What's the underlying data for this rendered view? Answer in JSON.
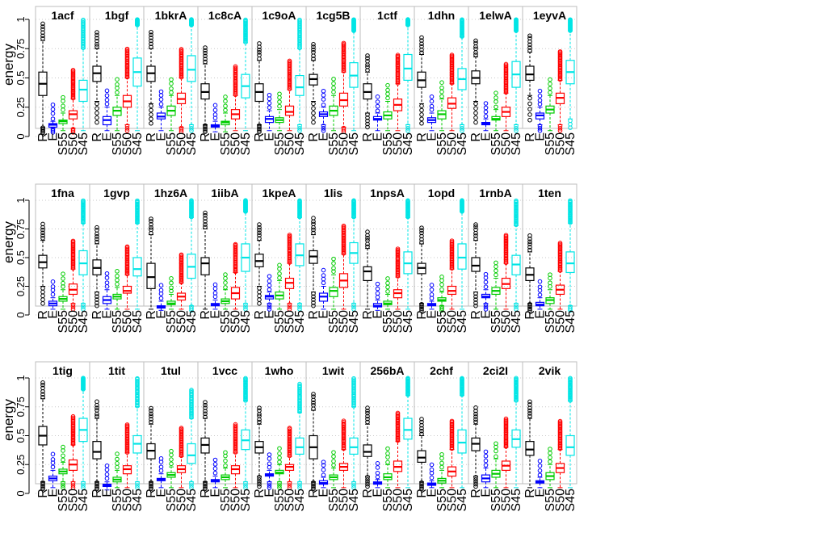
{
  "chart_data": {
    "type": "boxplot",
    "ylabel": "energy",
    "ylim": [
      0,
      1
    ],
    "yticks": [
      0,
      0.25,
      0.5,
      0.75,
      1
    ],
    "ytick_labels": [
      "0",
      "0.25",
      "0.5",
      "0.75",
      "1"
    ],
    "grid": "dotted horizontal",
    "series": [
      {
        "name": "R",
        "color": "#000000"
      },
      {
        "name": "E",
        "color": "#0000ff"
      },
      {
        "name": "S55",
        "color": "#00cc00"
      },
      {
        "name": "S50",
        "color": "#ff0000"
      },
      {
        "name": "S45",
        "color": "#00e5e5"
      }
    ],
    "panels": [
      {
        "title": "1acf",
        "boxes": [
          [
            0.08,
            0.35,
            0.45,
            0.55,
            0.82
          ],
          [
            0.07,
            0.08,
            0.1,
            0.11,
            0.13
          ],
          [
            0.05,
            0.11,
            0.13,
            0.14,
            0.2
          ],
          [
            0.07,
            0.15,
            0.19,
            0.22,
            0.32
          ],
          [
            0.05,
            0.3,
            0.4,
            0.48,
            0.75
          ]
        ]
      },
      {
        "title": "1bgf",
        "boxes": [
          [
            0.3,
            0.47,
            0.54,
            0.6,
            0.75
          ],
          [
            0.05,
            0.1,
            0.14,
            0.17,
            0.25
          ],
          [
            0.05,
            0.18,
            0.22,
            0.25,
            0.35
          ],
          [
            0.1,
            0.25,
            0.3,
            0.35,
            0.5
          ],
          [
            0.05,
            0.43,
            0.55,
            0.67,
            0.95
          ]
        ]
      },
      {
        "title": "1bkrA",
        "boxes": [
          [
            0.28,
            0.47,
            0.54,
            0.6,
            0.75
          ],
          [
            0.05,
            0.15,
            0.17,
            0.2,
            0.25
          ],
          [
            0.05,
            0.18,
            0.22,
            0.26,
            0.35
          ],
          [
            0.08,
            0.28,
            0.32,
            0.37,
            0.5
          ],
          [
            0.1,
            0.47,
            0.57,
            0.69,
            0.95
          ]
        ]
      },
      {
        "title": "1c8cA",
        "boxes": [
          [
            0.1,
            0.32,
            0.38,
            0.45,
            0.62
          ],
          [
            0.04,
            0.08,
            0.09,
            0.1,
            0.13
          ],
          [
            0.04,
            0.1,
            0.12,
            0.13,
            0.2
          ],
          [
            0.05,
            0.15,
            0.19,
            0.23,
            0.35
          ],
          [
            0.05,
            0.33,
            0.43,
            0.53,
            0.8
          ]
        ]
      },
      {
        "title": "1c9oA",
        "boxes": [
          [
            0.1,
            0.3,
            0.38,
            0.45,
            0.65
          ],
          [
            0.05,
            0.12,
            0.15,
            0.17,
            0.22
          ],
          [
            0.05,
            0.12,
            0.14,
            0.16,
            0.23
          ],
          [
            0.05,
            0.18,
            0.21,
            0.26,
            0.4
          ],
          [
            0.1,
            0.35,
            0.42,
            0.52,
            0.75
          ]
        ]
      },
      {
        "title": "1cg5B",
        "boxes": [
          [
            0.3,
            0.44,
            0.49,
            0.53,
            0.65
          ],
          [
            0.1,
            0.17,
            0.19,
            0.21,
            0.25
          ],
          [
            0.05,
            0.18,
            0.22,
            0.26,
            0.35
          ],
          [
            0.08,
            0.26,
            0.31,
            0.37,
            0.55
          ],
          [
            0.05,
            0.42,
            0.52,
            0.63,
            0.9
          ]
        ]
      },
      {
        "title": "1ctf",
        "boxes": [
          [
            0.2,
            0.32,
            0.38,
            0.45,
            0.55
          ],
          [
            0.05,
            0.14,
            0.15,
            0.17,
            0.2
          ],
          [
            0.05,
            0.15,
            0.18,
            0.21,
            0.3
          ],
          [
            0.05,
            0.22,
            0.27,
            0.32,
            0.45
          ],
          [
            0.1,
            0.48,
            0.58,
            0.7,
            0.95
          ]
        ]
      },
      {
        "title": "1dhn",
        "boxes": [
          [
            0.28,
            0.42,
            0.48,
            0.55,
            0.7
          ],
          [
            0.05,
            0.12,
            0.14,
            0.16,
            0.2
          ],
          [
            0.05,
            0.15,
            0.19,
            0.22,
            0.32
          ],
          [
            0.05,
            0.24,
            0.28,
            0.33,
            0.45
          ],
          [
            0.1,
            0.4,
            0.49,
            0.58,
            0.85
          ]
        ]
      },
      {
        "title": "1elwA",
        "boxes": [
          [
            0.3,
            0.45,
            0.5,
            0.56,
            0.68
          ],
          [
            0.05,
            0.1,
            0.11,
            0.12,
            0.15
          ],
          [
            0.05,
            0.14,
            0.15,
            0.17,
            0.23
          ],
          [
            0.05,
            0.17,
            0.21,
            0.25,
            0.37
          ],
          [
            0.1,
            0.42,
            0.53,
            0.64,
            0.9
          ]
        ]
      },
      {
        "title": "1eyvA",
        "boxes": [
          [
            0.35,
            0.48,
            0.53,
            0.6,
            0.72
          ],
          [
            0.1,
            0.15,
            0.18,
            0.2,
            0.25
          ],
          [
            0.05,
            0.2,
            0.23,
            0.26,
            0.35
          ],
          [
            0.1,
            0.28,
            0.33,
            0.37,
            0.48
          ],
          [
            0.15,
            0.45,
            0.55,
            0.65,
            0.9
          ]
        ]
      },
      {
        "title": "1fna",
        "boxes": [
          [
            0.25,
            0.41,
            0.46,
            0.52,
            0.65
          ],
          [
            0.05,
            0.08,
            0.1,
            0.12,
            0.15
          ],
          [
            0.05,
            0.12,
            0.14,
            0.16,
            0.22
          ],
          [
            0.1,
            0.18,
            0.22,
            0.27,
            0.4
          ],
          [
            0.1,
            0.35,
            0.45,
            0.56,
            0.8
          ]
        ]
      },
      {
        "title": "1gvp",
        "boxes": [
          [
            0.2,
            0.35,
            0.41,
            0.48,
            0.62
          ],
          [
            0.05,
            0.1,
            0.13,
            0.16,
            0.22
          ],
          [
            0.05,
            0.14,
            0.16,
            0.18,
            0.24
          ],
          [
            0.05,
            0.19,
            0.21,
            0.25,
            0.35
          ],
          [
            0.05,
            0.34,
            0.4,
            0.5,
            0.8
          ]
        ]
      },
      {
        "title": "1hz6A",
        "boxes": [
          [
            0.05,
            0.23,
            0.33,
            0.45,
            0.7
          ],
          [
            0.04,
            0.06,
            0.07,
            0.08,
            0.12
          ],
          [
            0.05,
            0.09,
            0.1,
            0.12,
            0.18
          ],
          [
            0.05,
            0.13,
            0.16,
            0.19,
            0.28
          ],
          [
            0.08,
            0.32,
            0.42,
            0.53,
            0.85
          ]
        ]
      },
      {
        "title": "1iibA",
        "boxes": [
          [
            0.05,
            0.35,
            0.45,
            0.5,
            0.75
          ],
          [
            0.05,
            0.08,
            0.09,
            0.1,
            0.13
          ],
          [
            0.05,
            0.1,
            0.12,
            0.14,
            0.22
          ],
          [
            0.05,
            0.14,
            0.19,
            0.24,
            0.37
          ],
          [
            0.1,
            0.38,
            0.5,
            0.62,
            0.9
          ]
        ]
      },
      {
        "title": "1kpeA",
        "boxes": [
          [
            0.25,
            0.42,
            0.47,
            0.53,
            0.65
          ],
          [
            0.1,
            0.14,
            0.16,
            0.17,
            0.2
          ],
          [
            0.05,
            0.14,
            0.17,
            0.2,
            0.3
          ],
          [
            0.1,
            0.23,
            0.28,
            0.32,
            0.45
          ],
          [
            0.1,
            0.43,
            0.52,
            0.62,
            0.85
          ]
        ]
      },
      {
        "title": "1lis",
        "boxes": [
          [
            0.2,
            0.45,
            0.51,
            0.56,
            0.7
          ],
          [
            0.05,
            0.12,
            0.16,
            0.19,
            0.25
          ],
          [
            0.05,
            0.16,
            0.21,
            0.24,
            0.35
          ],
          [
            0.05,
            0.24,
            0.3,
            0.36,
            0.53
          ],
          [
            0.1,
            0.45,
            0.54,
            0.63,
            0.85
          ]
        ]
      },
      {
        "title": "1npsA",
        "boxes": [
          [
            0.05,
            0.3,
            0.38,
            0.42,
            0.58
          ],
          [
            0.04,
            0.07,
            0.08,
            0.1,
            0.13
          ],
          [
            0.05,
            0.09,
            0.1,
            0.12,
            0.18
          ],
          [
            0.05,
            0.15,
            0.19,
            0.22,
            0.33
          ],
          [
            0.05,
            0.36,
            0.45,
            0.55,
            0.85
          ]
        ]
      },
      {
        "title": "1opd",
        "boxes": [
          [
            0.1,
            0.36,
            0.41,
            0.45,
            0.62
          ],
          [
            0.05,
            0.08,
            0.09,
            0.1,
            0.12
          ],
          [
            0.08,
            0.12,
            0.13,
            0.15,
            0.2
          ],
          [
            0.05,
            0.18,
            0.21,
            0.25,
            0.4
          ],
          [
            0.05,
            0.4,
            0.5,
            0.62,
            0.9
          ]
        ]
      },
      {
        "title": "1rnbA",
        "boxes": [
          [
            0.2,
            0.38,
            0.43,
            0.5,
            0.65
          ],
          [
            0.1,
            0.15,
            0.16,
            0.18,
            0.22
          ],
          [
            0.05,
            0.18,
            0.21,
            0.24,
            0.32
          ],
          [
            0.05,
            0.23,
            0.27,
            0.32,
            0.45
          ],
          [
            0.1,
            0.35,
            0.44,
            0.52,
            0.78
          ]
        ]
      },
      {
        "title": "1ten",
        "boxes": [
          [
            0.1,
            0.3,
            0.35,
            0.41,
            0.55
          ],
          [
            0.05,
            0.08,
            0.09,
            0.11,
            0.15
          ],
          [
            0.05,
            0.1,
            0.13,
            0.15,
            0.22
          ],
          [
            0.05,
            0.18,
            0.22,
            0.26,
            0.38
          ],
          [
            0.08,
            0.37,
            0.45,
            0.55,
            0.8
          ]
        ]
      },
      {
        "title": "1tig",
        "boxes": [
          [
            0.1,
            0.42,
            0.5,
            0.58,
            0.82
          ],
          [
            0.05,
            0.11,
            0.13,
            0.15,
            0.2
          ],
          [
            0.1,
            0.17,
            0.19,
            0.21,
            0.27
          ],
          [
            0.1,
            0.2,
            0.25,
            0.29,
            0.42
          ],
          [
            0.1,
            0.45,
            0.55,
            0.65,
            0.9
          ]
        ]
      },
      {
        "title": "1tit",
        "boxes": [
          [
            0.1,
            0.3,
            0.36,
            0.45,
            0.65
          ],
          [
            0.03,
            0.06,
            0.07,
            0.08,
            0.1
          ],
          [
            0.05,
            0.1,
            0.12,
            0.14,
            0.2
          ],
          [
            0.05,
            0.17,
            0.21,
            0.24,
            0.35
          ],
          [
            0.1,
            0.35,
            0.43,
            0.5,
            0.75
          ]
        ]
      },
      {
        "title": "1tul",
        "boxes": [
          [
            0.1,
            0.3,
            0.37,
            0.43,
            0.6
          ],
          [
            0.05,
            0.11,
            0.12,
            0.13,
            0.17
          ],
          [
            0.05,
            0.14,
            0.16,
            0.18,
            0.23
          ],
          [
            0.05,
            0.18,
            0.21,
            0.24,
            0.32
          ],
          [
            0.1,
            0.26,
            0.33,
            0.43,
            0.65
          ]
        ]
      },
      {
        "title": "1vcc",
        "boxes": [
          [
            0.1,
            0.35,
            0.42,
            0.48,
            0.65
          ],
          [
            0.05,
            0.1,
            0.11,
            0.12,
            0.15
          ],
          [
            0.05,
            0.12,
            0.14,
            0.16,
            0.22
          ],
          [
            0.05,
            0.17,
            0.21,
            0.24,
            0.35
          ],
          [
            0.1,
            0.38,
            0.46,
            0.55,
            0.8
          ]
        ]
      },
      {
        "title": "1who",
        "boxes": [
          [
            0.15,
            0.35,
            0.4,
            0.45,
            0.6
          ],
          [
            0.1,
            0.15,
            0.16,
            0.17,
            0.2
          ],
          [
            0.1,
            0.17,
            0.18,
            0.2,
            0.25
          ],
          [
            0.1,
            0.2,
            0.23,
            0.25,
            0.32
          ],
          [
            0.1,
            0.34,
            0.4,
            0.48,
            0.7
          ]
        ]
      },
      {
        "title": "1wit",
        "boxes": [
          [
            0.1,
            0.3,
            0.4,
            0.5,
            0.72
          ],
          [
            0.05,
            0.08,
            0.09,
            0.11,
            0.14
          ],
          [
            0.05,
            0.12,
            0.14,
            0.16,
            0.22
          ],
          [
            0.05,
            0.2,
            0.23,
            0.26,
            0.38
          ],
          [
            0.1,
            0.34,
            0.4,
            0.48,
            0.75
          ]
        ]
      },
      {
        "title": "256bA",
        "boxes": [
          [
            0.15,
            0.32,
            0.36,
            0.42,
            0.6
          ],
          [
            0.05,
            0.08,
            0.09,
            0.1,
            0.12
          ],
          [
            0.05,
            0.12,
            0.14,
            0.17,
            0.25
          ],
          [
            0.05,
            0.19,
            0.23,
            0.28,
            0.45
          ],
          [
            0.05,
            0.47,
            0.55,
            0.65,
            0.85
          ]
        ]
      },
      {
        "title": "2chf",
        "boxes": [
          [
            0.1,
            0.27,
            0.31,
            0.37,
            0.5
          ],
          [
            0.05,
            0.07,
            0.08,
            0.09,
            0.11
          ],
          [
            0.05,
            0.09,
            0.11,
            0.13,
            0.2
          ],
          [
            0.05,
            0.15,
            0.19,
            0.23,
            0.38
          ],
          [
            0.05,
            0.35,
            0.44,
            0.55,
            0.85
          ]
        ]
      },
      {
        "title": "2ci2I",
        "boxes": [
          [
            0.15,
            0.37,
            0.43,
            0.48,
            0.6
          ],
          [
            0.05,
            0.1,
            0.13,
            0.16,
            0.22
          ],
          [
            0.05,
            0.14,
            0.17,
            0.2,
            0.3
          ],
          [
            0.05,
            0.2,
            0.24,
            0.28,
            0.4
          ],
          [
            0.05,
            0.4,
            0.47,
            0.55,
            0.8
          ]
        ]
      },
      {
        "title": "2vik",
        "boxes": [
          [
            0.05,
            0.33,
            0.38,
            0.45,
            0.65
          ],
          [
            0.05,
            0.09,
            0.1,
            0.11,
            0.14
          ],
          [
            0.05,
            0.12,
            0.15,
            0.18,
            0.25
          ],
          [
            0.05,
            0.18,
            0.22,
            0.26,
            0.38
          ],
          [
            0.05,
            0.33,
            0.4,
            0.5,
            0.8
          ]
        ]
      }
    ]
  }
}
